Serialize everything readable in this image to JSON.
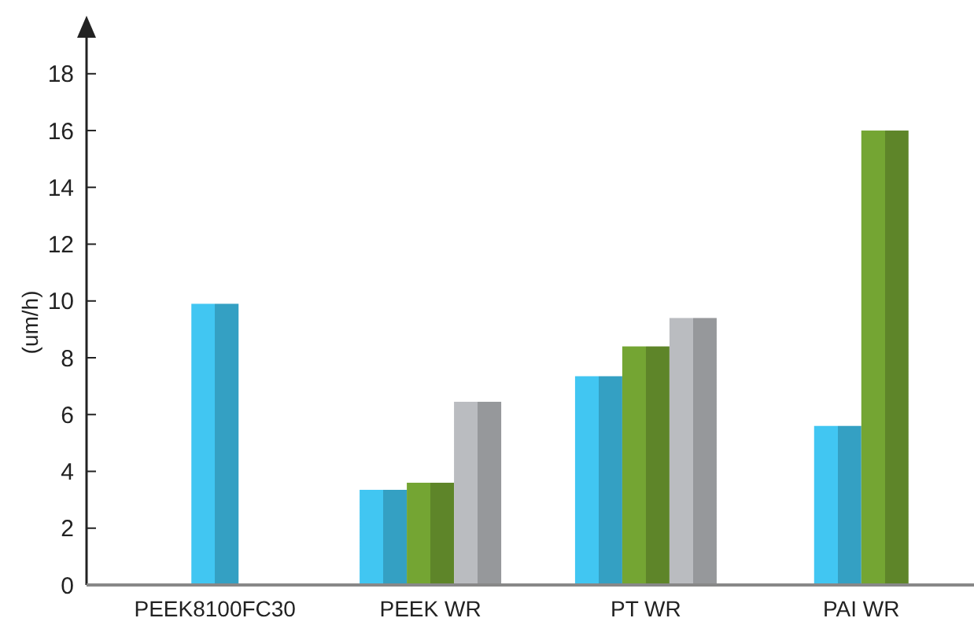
{
  "chart_data": {
    "type": "bar",
    "ylabel": "(um/h)",
    "categories": [
      "PEEK8100FC30",
      "PEEK WR",
      "PT WR",
      "PAI WR"
    ],
    "series": [
      {
        "color": "#41c6f2",
        "values": [
          9.9,
          3.35,
          7.35,
          5.6
        ]
      },
      {
        "color": "#74a533",
        "values": [
          null,
          3.6,
          8.4,
          16
        ]
      },
      {
        "color": "#babcc0",
        "values": [
          null,
          6.45,
          9.4,
          null
        ]
      }
    ],
    "ylim": [
      0,
      19.6
    ],
    "yticks": [
      0,
      2,
      4,
      6,
      8,
      10,
      12,
      14,
      16,
      18
    ],
    "grid": false
  }
}
